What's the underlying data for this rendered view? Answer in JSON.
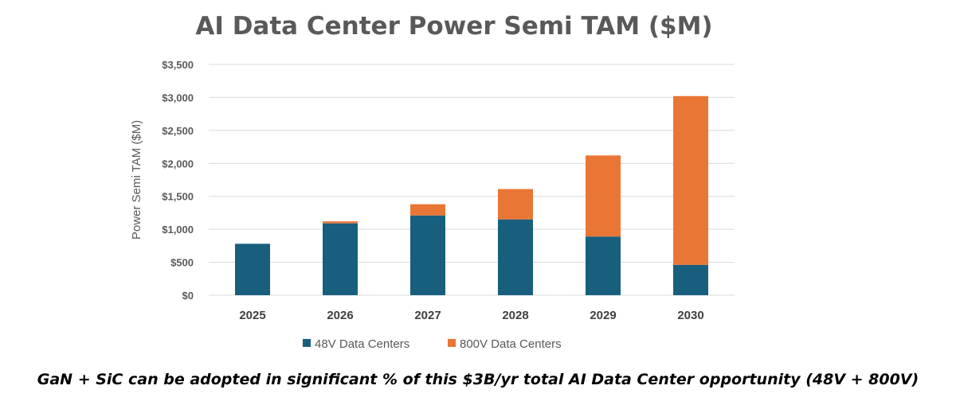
{
  "chart_data": {
    "type": "bar",
    "stacked": true,
    "title": "AI Data Center Power Semi TAM ($M)",
    "ylabel": "Power Semi TAM ($M)",
    "xlabel": "",
    "categories": [
      "2025",
      "2026",
      "2027",
      "2028",
      "2029",
      "2030"
    ],
    "series": [
      {
        "name": "48V Data Centers",
        "color": "#185f7e",
        "values": [
          780,
          1090,
          1210,
          1150,
          890,
          460
        ]
      },
      {
        "name": "800V Data Centers",
        "color": "#ea7635",
        "values": [
          0,
          30,
          170,
          460,
          1230,
          2560
        ]
      }
    ],
    "ylim": [
      0,
      3500
    ],
    "yticks": [
      0,
      500,
      1000,
      1500,
      2000,
      2500,
      3000,
      3500
    ],
    "ytick_labels": [
      "$0",
      "$500",
      "$1,000",
      "$1,500",
      "$2,000",
      "$2,500",
      "$3,000",
      "$3,500"
    ],
    "grid": true,
    "legend_position": "bottom"
  },
  "caption": "GaN + SiC can be adopted in significant % of this $3B/yr total AI Data Center opportunity (48V + 800V)"
}
